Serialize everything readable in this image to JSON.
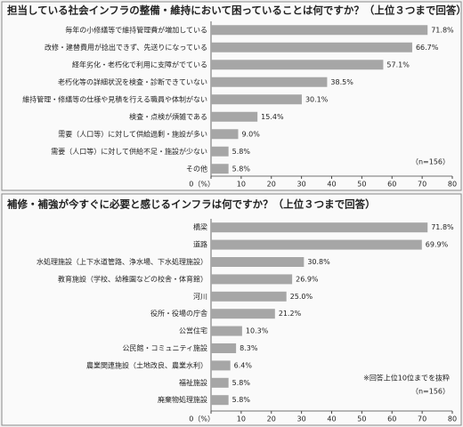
{
  "chart_data": [
    {
      "type": "bar",
      "orientation": "horizontal",
      "title": "担当している社会インフラの整備・維持において困っていることは何ですか？（上位３つまで回答）",
      "categories": [
        "毎年の小修繕等で維持管理費が増加している",
        "改修・建替費用が捻出できず、先送りになっている",
        "経年劣化・老朽化で利用に支障がでている",
        "老朽化等の詳細状況を検査・診断できていない",
        "維持管理・修繕等の仕様や見積を行える職員や体制がない",
        "検査・点検が煩雑である",
        "需要（人口等）に対して供給過剰・施設が多い",
        "需要（人口等）に対して供給不足・施設が少ない",
        "その他"
      ],
      "values": [
        71.8,
        66.7,
        57.1,
        38.5,
        30.1,
        15.4,
        9.0,
        5.8,
        5.8
      ],
      "value_labels": [
        "71.8%",
        "66.7%",
        "57.1%",
        "38.5%",
        "30.1%",
        "15.4%",
        "9.0%",
        "5.8%",
        "5.8%"
      ],
      "color": "#a6a6a6",
      "xlim": [
        0,
        80
      ],
      "xticks": [
        {
          "value": 0,
          "label": "0（%）"
        },
        10,
        20,
        30,
        40,
        50,
        60,
        70,
        80
      ],
      "notes": [
        "（n=156）"
      ]
    },
    {
      "type": "bar",
      "orientation": "horizontal",
      "title": "補修・補強が今すぐに必要と感じるインフラは何ですか？（上位３つまで回答）",
      "categories": [
        "橋梁",
        "道路",
        "水処理施設（上下水道管路、浄水場、下水処理施設）",
        "教育施設（学校、幼稚園などの校舎・体育館）",
        "河川",
        "役所・役場の庁舎",
        "公営住宅",
        "公民館・コミュニティ施設",
        "農業関連施設（土地改良、農業水利）",
        "福祉施設",
        "廃棄物処理施設"
      ],
      "values": [
        71.8,
        69.9,
        30.8,
        26.9,
        25.0,
        21.2,
        10.3,
        8.3,
        6.4,
        5.8,
        5.8
      ],
      "value_labels": [
        "71.8%",
        "69.9%",
        "30.8%",
        "26.9%",
        "25.0%",
        "21.2%",
        "10.3%",
        "8.3%",
        "6.4%",
        "5.8%",
        "5.8%"
      ],
      "color": "#a6a6a6",
      "xlim": [
        0,
        80
      ],
      "xticks": [
        {
          "value": 0,
          "label": "0（%）"
        },
        10,
        20,
        30,
        40,
        50,
        60,
        70,
        80
      ],
      "notes": [
        "※回答上位10位までを抜粋",
        "（n=156）"
      ]
    }
  ]
}
